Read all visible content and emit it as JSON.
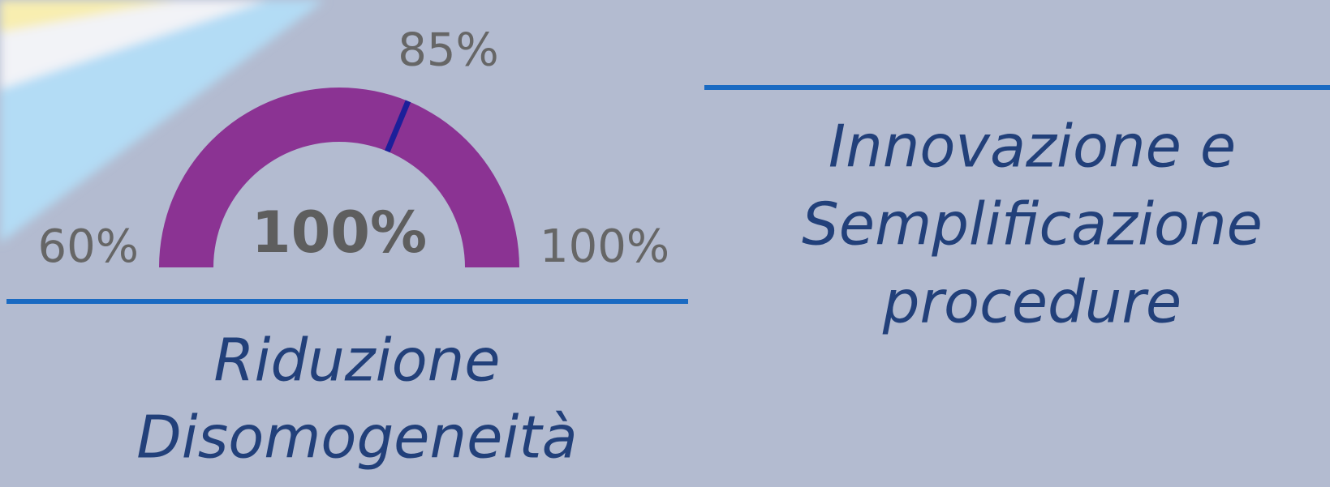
{
  "chart_data": {
    "type": "gauge",
    "value": 100,
    "value_label": "100%",
    "ylim": [
      60,
      100
    ],
    "yticks": [
      {
        "value": 60,
        "label": "60%"
      },
      {
        "value": 100,
        "label": "100%"
      }
    ],
    "target": {
      "value": 85,
      "label": "85%"
    },
    "color": "#8b3393",
    "target_color": "#1c1f9a",
    "caption": [
      "Riduzione",
      "Disomogeneità"
    ]
  },
  "side_panel": {
    "title": [
      "Innovazione e",
      "Semplificazione",
      "procedure"
    ]
  }
}
